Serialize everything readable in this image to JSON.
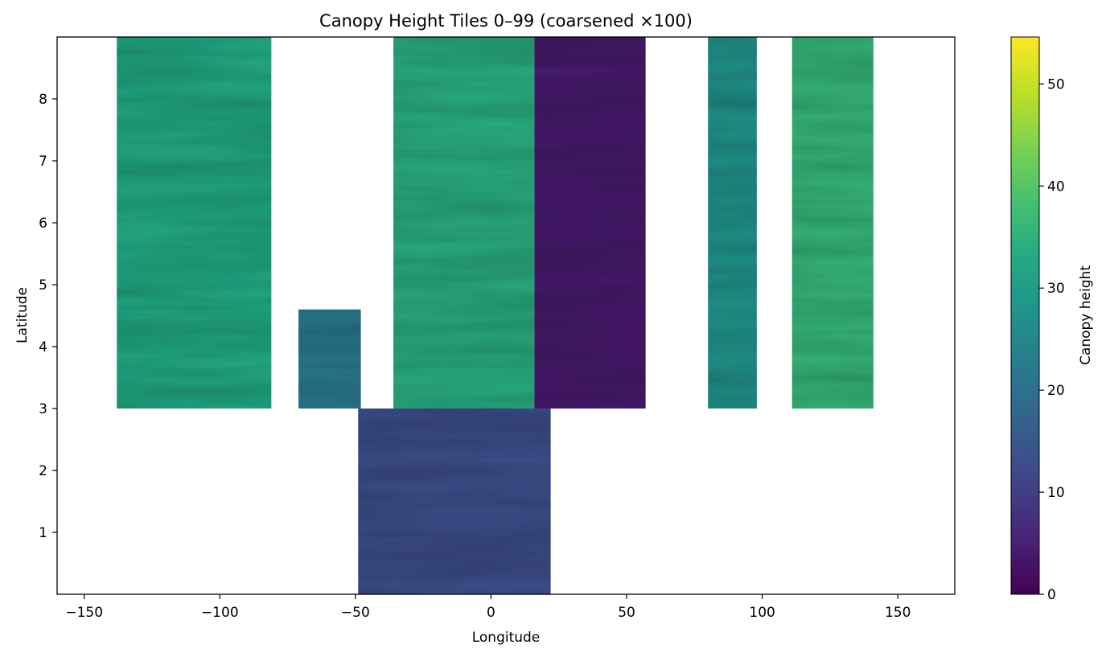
{
  "chart_data": {
    "type": "heatmap",
    "title": "Canopy Height Tiles 0–99 (coarsened ×100)",
    "xlabel": "Longitude",
    "ylabel": "Latitude",
    "xlim": [
      -160,
      171
    ],
    "ylim": [
      0,
      9
    ],
    "xticks": [
      -150,
      -100,
      -50,
      0,
      50,
      100,
      150
    ],
    "xtick_labels": [
      "−150",
      "−100",
      "−50",
      "0",
      "50",
      "100",
      "150"
    ],
    "yticks": [
      1,
      2,
      3,
      4,
      5,
      6,
      7,
      8
    ],
    "ytick_labels": [
      "1",
      "2",
      "3",
      "4",
      "5",
      "6",
      "7",
      "8"
    ],
    "grid": false,
    "colormap": "viridis",
    "colorbar": {
      "label": "Canopy height",
      "range": [
        0,
        54.6
      ],
      "ticks": [
        0,
        10,
        20,
        30,
        40,
        50
      ],
      "tick_labels": [
        "0",
        "10",
        "20",
        "30",
        "40",
        "50"
      ]
    },
    "regions": [
      {
        "lon": [
          -138,
          -81
        ],
        "lat": [
          3,
          9
        ],
        "canopy_height": 33
      },
      {
        "lon": [
          -71,
          -48
        ],
        "lat": [
          3,
          4.6
        ],
        "canopy_height": 22
      },
      {
        "lon": [
          -49,
          22
        ],
        "lat": [
          0,
          3
        ],
        "canopy_height": 13
      },
      {
        "lon": [
          -36,
          16
        ],
        "lat": [
          3,
          9
        ],
        "canopy_height": 34
      },
      {
        "lon": [
          16,
          57
        ],
        "lat": [
          3,
          9
        ],
        "canopy_height": 4
      },
      {
        "lon": [
          80,
          98
        ],
        "lat": [
          3,
          9
        ],
        "canopy_height": 28
      },
      {
        "lon": [
          111,
          141
        ],
        "lat": [
          3,
          9
        ],
        "canopy_height": 36
      }
    ]
  }
}
